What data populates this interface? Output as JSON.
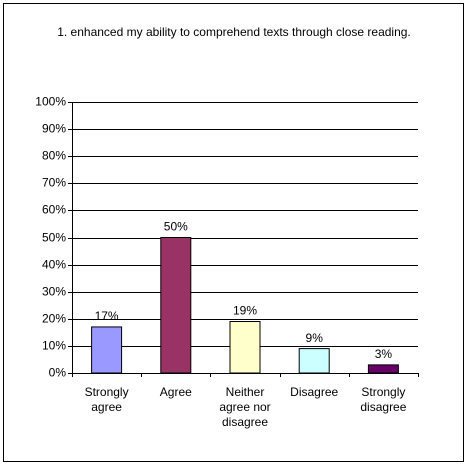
{
  "chart_data": {
    "type": "bar",
    "title": "1. enhanced my ability to comprehend texts through close reading.",
    "categories": [
      "Strongly agree",
      "Agree",
      "Neither agree nor disagree",
      "Disagree",
      "Strongly disagree"
    ],
    "values": [
      17,
      50,
      19,
      9,
      3
    ],
    "value_labels": [
      "17%",
      "50%",
      "19%",
      "9%",
      "3%"
    ],
    "colors": [
      "#9999ff",
      "#993366",
      "#ffffcc",
      "#ccffff",
      "#660066"
    ],
    "ylim": [
      0,
      100
    ],
    "yticks": [
      {
        "value": 0,
        "label": "0%"
      },
      {
        "value": 10,
        "label": "10%"
      },
      {
        "value": 20,
        "label": "20%"
      },
      {
        "value": 30,
        "label": "30%"
      },
      {
        "value": 40,
        "label": "40%"
      },
      {
        "value": 50,
        "label": "50%"
      },
      {
        "value": 60,
        "label": "60%"
      },
      {
        "value": 70,
        "label": "70%"
      },
      {
        "value": 80,
        "label": "80%"
      },
      {
        "value": 90,
        "label": "90%"
      },
      {
        "value": 100,
        "label": "100%"
      }
    ],
    "grid": true
  }
}
